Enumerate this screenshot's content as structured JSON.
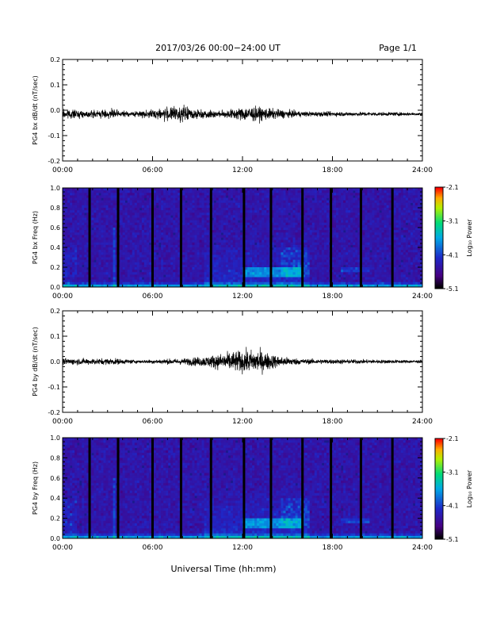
{
  "header": {
    "title": "2017/03/26  00:00−24:00 UT",
    "page": "Page 1/1"
  },
  "footer": {
    "xlabel": "Universal Time (hh:mm)"
  },
  "colorbar": {
    "label": "Log₁₀ Power",
    "ticks": [
      "-2.1",
      "-3.1",
      "-4.1",
      "-5.1"
    ]
  },
  "colors": {
    "trace": "#000000",
    "background": "#1a1a8c"
  },
  "chart_data": [
    {
      "type": "line",
      "ylabel": "PG4 bx dB/dt (nT/sec)",
      "x_ticks": [
        "00:00",
        "06:00",
        "12:00",
        "18:00",
        "24:00"
      ],
      "y_ticks": [
        "0.2",
        "0.1",
        "0.0",
        "-0.1",
        "-0.2"
      ],
      "xlim": [
        0,
        24
      ],
      "ylim": [
        -0.2,
        0.2
      ],
      "baseline": -0.015,
      "activity": [
        [
          0,
          0.02
        ],
        [
          1.4,
          0.012
        ],
        [
          3.3,
          0.018
        ],
        [
          4.5,
          0.008
        ],
        [
          7.8,
          0.03
        ],
        [
          9.0,
          0.02
        ],
        [
          10.5,
          0.012
        ],
        [
          12.5,
          0.03
        ],
        [
          14.0,
          0.02
        ],
        [
          16.0,
          0.01
        ],
        [
          20.0,
          0.008
        ],
        [
          24,
          0.006
        ]
      ]
    },
    {
      "type": "heatmap",
      "ylabel": "PG4 bx Freq (Hz)",
      "x_ticks": [
        "00:00",
        "06:00",
        "12:00",
        "18:00",
        "24:00"
      ],
      "y_ticks": [
        "1.0",
        "0.8",
        "0.6",
        "0.4",
        "0.2",
        "0.0"
      ],
      "xlim": [
        0,
        24
      ],
      "ylim": [
        0,
        1
      ],
      "zlim": [
        -5.1,
        -2.1
      ],
      "gaps_hours": [
        1.8,
        3.7,
        6.0,
        7.9,
        9.9,
        12.1,
        13.9,
        16.0,
        17.9,
        19.9,
        22.0
      ]
    },
    {
      "type": "line",
      "ylabel": "PG4 by dB/dt (nT/sec)",
      "x_ticks": [
        "00:00",
        "06:00",
        "12:00",
        "18:00",
        "24:00"
      ],
      "y_ticks": [
        "0.2",
        "0.1",
        "0.0",
        "-0.1",
        "-0.2"
      ],
      "xlim": [
        0,
        24
      ],
      "ylim": [
        -0.2,
        0.2
      ],
      "baseline": 0.0,
      "activity": [
        [
          0,
          0.012
        ],
        [
          3.5,
          0.012
        ],
        [
          5.0,
          0.006
        ],
        [
          8.0,
          0.012
        ],
        [
          9.5,
          0.02
        ],
        [
          11.5,
          0.04
        ],
        [
          13.0,
          0.045
        ],
        [
          14.5,
          0.02
        ],
        [
          16.0,
          0.01
        ],
        [
          20.0,
          0.008
        ],
        [
          24,
          0.006
        ]
      ]
    },
    {
      "type": "heatmap",
      "ylabel": "PG4 by Freq (Hz)",
      "x_ticks": [
        "00:00",
        "06:00",
        "12:00",
        "18:00",
        "24:00"
      ],
      "y_ticks": [
        "1.0",
        "0.8",
        "0.6",
        "0.4",
        "0.2",
        "0.0"
      ],
      "xlim": [
        0,
        24
      ],
      "ylim": [
        0,
        1
      ],
      "zlim": [
        -5.1,
        -2.1
      ],
      "gaps_hours": [
        1.8,
        3.7,
        6.0,
        7.9,
        9.9,
        12.1,
        13.9,
        16.0,
        17.9,
        19.9,
        22.0
      ]
    }
  ]
}
